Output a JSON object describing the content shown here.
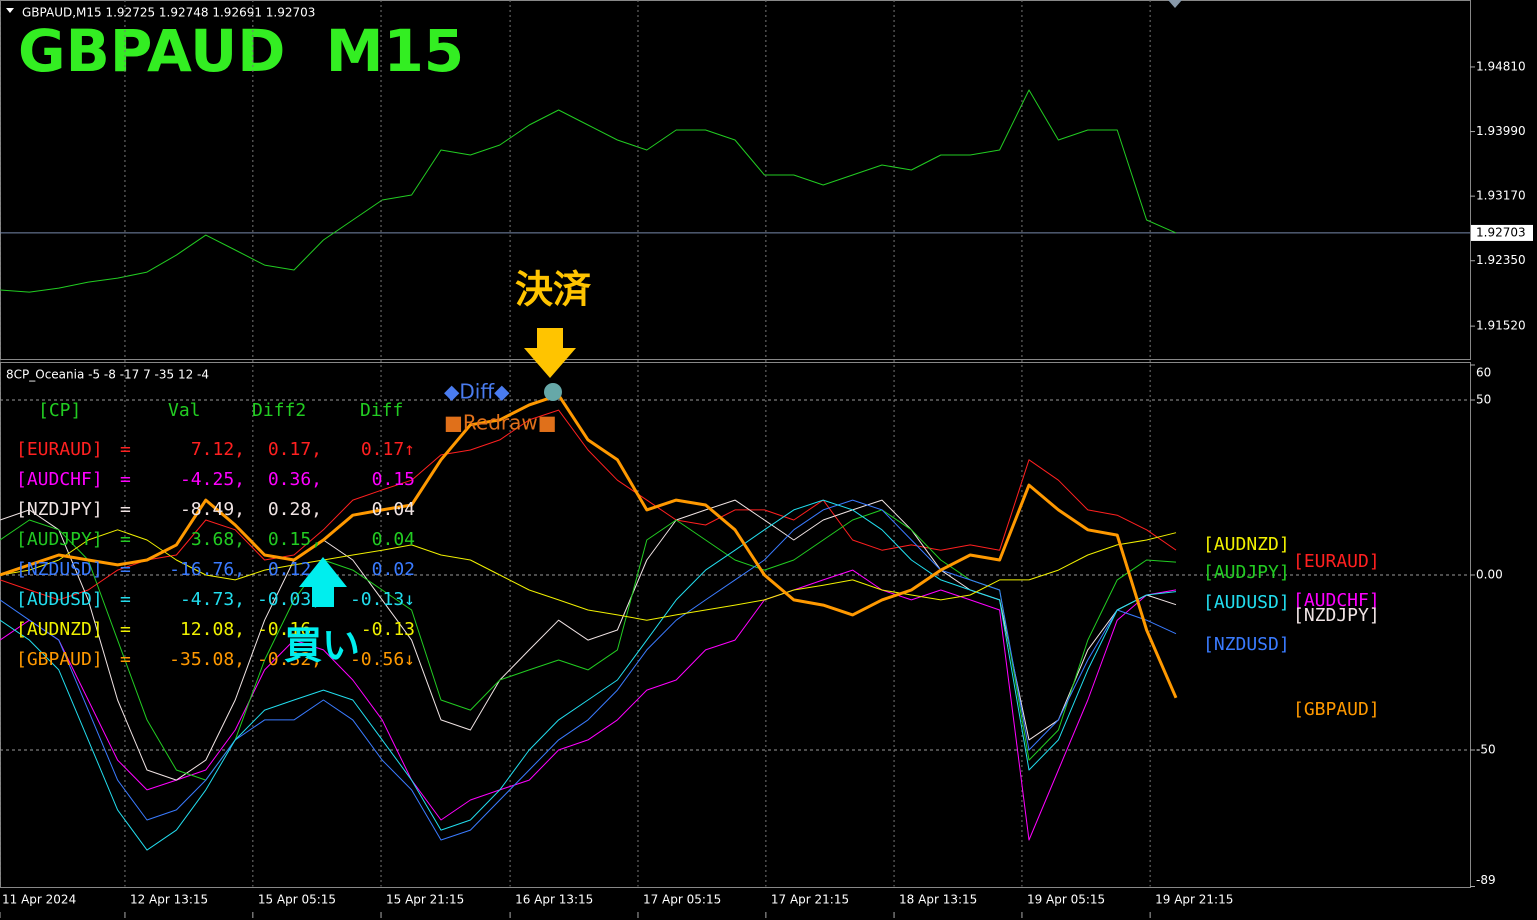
{
  "chart_data": [
    {
      "type": "line",
      "header": "GBPAUD,M15  1.92725 1.92748 1.92691 1.92703",
      "title": "GBPAUD  M15",
      "x": [
        0,
        1,
        2,
        3,
        4,
        5,
        6,
        7,
        8,
        9,
        10,
        11,
        12,
        13,
        14,
        15,
        16,
        17,
        18,
        19,
        20,
        21,
        22,
        23,
        24,
        25,
        26,
        27,
        28,
        29,
        30,
        31,
        32,
        33,
        34,
        35,
        36,
        37,
        38,
        39,
        40
      ],
      "xlim": [
        0,
        50
      ],
      "ylim": [
        1.9109,
        1.9566
      ],
      "yticks": [
        {
          "value": 1.9481,
          "label": "1.94810"
        },
        {
          "value": 1.9399,
          "label": "1.93990"
        },
        {
          "value": 1.9317,
          "label": "1.93170"
        },
        {
          "value": 1.9235,
          "label": "1.92350"
        },
        {
          "value": 1.9152,
          "label": "1.91520"
        }
      ],
      "current_price": {
        "value": 1.92703,
        "label": "1.92703"
      },
      "color": "#22cc22",
      "values": [
        1.91978,
        1.91952,
        1.92003,
        1.92079,
        1.9213,
        1.92206,
        1.92422,
        1.92676,
        1.92486,
        1.92295,
        1.92232,
        1.92613,
        1.92867,
        1.93121,
        1.93184,
        1.93756,
        1.93692,
        1.93819,
        1.94073,
        1.94264,
        1.94073,
        1.93883,
        1.93756,
        1.9401,
        1.9401,
        1.93883,
        1.93438,
        1.93438,
        1.93311,
        1.93438,
        1.93565,
        1.93502,
        1.93692,
        1.93692,
        1.93756,
        1.94518,
        1.93883,
        1.9401,
        1.9401,
        1.92867,
        1.92703
      ]
    },
    {
      "type": "line",
      "header": "8CP_Oceania -5 -8 -17 7 -35 12 -4",
      "x": [
        0,
        1,
        2,
        3,
        4,
        5,
        6,
        7,
        8,
        9,
        10,
        11,
        12,
        13,
        14,
        15,
        16,
        17,
        18,
        19,
        20,
        21,
        22,
        23,
        24,
        25,
        26,
        27,
        28,
        29,
        30,
        31,
        32,
        33,
        34,
        35,
        36,
        37,
        38,
        39,
        40
      ],
      "xlim": [
        0,
        50
      ],
      "ylim": [
        -89,
        60
      ],
      "yticks": [
        60,
        50,
        {
          "value": 0,
          "label": "0.00"
        },
        -50,
        -89
      ],
      "grid": true,
      "xticks": [
        {
          "value": 0,
          "label": "11 Apr 2024"
        },
        {
          "value": 4.25,
          "label": "12 Apr 13:15"
        },
        {
          "value": 8.6,
          "label": "15 Apr 05:15"
        },
        {
          "value": 12.96,
          "label": "15 Apr 21:15"
        },
        {
          "value": 17.35,
          "label": "16 Apr 13:15"
        },
        {
          "value": 21.7,
          "label": "17 Apr 05:15"
        },
        {
          "value": 26.05,
          "label": "17 Apr 21:15"
        },
        {
          "value": 30.41,
          "label": "18 Apr 13:15"
        },
        {
          "value": 34.76,
          "label": "19 Apr 05:15"
        },
        {
          "value": 39.12,
          "label": "19 Apr 21:15"
        }
      ],
      "series": [
        {
          "name": "[EURAUD]",
          "color": "#ff2020",
          "width": 1,
          "values": [
            -1.4,
            -4.3,
            -7.1,
            -4.3,
            1.4,
            4.3,
            5.7,
            15.7,
            12.9,
            4.3,
            5.7,
            12.9,
            21.4,
            24.3,
            27.1,
            34.3,
            35.7,
            38.6,
            44.3,
            47.1,
            35.7,
            27.1,
            21.4,
            15.7,
            14.3,
            18.6,
            18.6,
            15.7,
            21.4,
            10,
            7.1,
            8.6,
            7.1,
            8.6,
            7.1,
            32.9,
            27.1,
            18.6,
            17.1,
            12.9,
            7.12
          ]
        },
        {
          "name": "[AUDCHF]",
          "color": "#ff00ff",
          "width": 1,
          "values": [
            -18.6,
            -12.9,
            -18.6,
            -35.7,
            -52.9,
            -61.4,
            -58.6,
            -55.7,
            -44.3,
            -27.1,
            -18.6,
            -21.4,
            -30,
            -41.4,
            -58.6,
            -70,
            -64.3,
            -61.4,
            -58.6,
            -50,
            -47.1,
            -41.4,
            -32.9,
            -30,
            -21.4,
            -18.6,
            -7.1,
            -4.3,
            -1.4,
            1.4,
            -4.3,
            -7.1,
            -4.3,
            -7.1,
            -10,
            -75.7,
            -55.7,
            -35.7,
            -12.9,
            -5.7,
            -4.25
          ]
        },
        {
          "name": "[NZDJPY]",
          "color": "#f0e4e4",
          "width": 1,
          "values": [
            15.7,
            18.6,
            12.9,
            -7.1,
            -35.7,
            -55.7,
            -58.6,
            -52.9,
            -35.7,
            -12.9,
            4.3,
            10,
            4.3,
            -7.1,
            -18.6,
            -41.4,
            -44.3,
            -30,
            -21.4,
            -12.9,
            -18.6,
            -15.7,
            4.3,
            15.7,
            18.6,
            21.4,
            15.7,
            10,
            15.7,
            18.6,
            21.4,
            12.9,
            1.4,
            -4.3,
            -7.1,
            -47.1,
            -41.4,
            -21.4,
            -10,
            -5.7,
            -8.49
          ]
        },
        {
          "name": "[AUDJPY]",
          "color": "#22cc22",
          "width": 1,
          "values": [
            10,
            15.7,
            12.9,
            4.3,
            -18.6,
            -41.4,
            -55.7,
            -58.6,
            -47.1,
            -24.3,
            -7.1,
            4.3,
            1.4,
            -4.3,
            -10,
            -35.7,
            -38.6,
            -30,
            -27.1,
            -24.3,
            -27.1,
            -21.4,
            10,
            15.7,
            10,
            4.3,
            1.4,
            4.3,
            10,
            15.7,
            18.6,
            12.9,
            4.3,
            -1.4,
            -4.3,
            -52.9,
            -44.3,
            -18.6,
            -1.4,
            4.3,
            3.68
          ]
        },
        {
          "name": "[NZDUSD]",
          "color": "#3a7bff",
          "width": 1,
          "values": [
            -7.1,
            -12.9,
            -18.6,
            -38.6,
            -58.6,
            -70,
            -67.1,
            -58.6,
            -47.1,
            -41.4,
            -41.4,
            -35.7,
            -41.4,
            -52.9,
            -61.4,
            -75.7,
            -72.9,
            -64.3,
            -55.7,
            -47.1,
            -41.4,
            -32.9,
            -21.4,
            -12.9,
            -7.1,
            -1.4,
            4.3,
            12.9,
            18.6,
            21.4,
            18.6,
            10,
            1.4,
            -1.4,
            -4.3,
            -50,
            -41.4,
            -24.3,
            -10,
            -12.9,
            -16.76
          ]
        },
        {
          "name": "[AUDUSD]",
          "color": "#22ddee",
          "width": 1,
          "values": [
            -12.9,
            -18.6,
            -27.1,
            -47.1,
            -67.1,
            -78.6,
            -72.9,
            -61.4,
            -47.1,
            -38.6,
            -35.7,
            -32.9,
            -35.7,
            -47.1,
            -58.6,
            -72.9,
            -70,
            -61.4,
            -50,
            -41.4,
            -35.7,
            -30,
            -18.6,
            -7.1,
            1.4,
            7.1,
            12.9,
            18.6,
            21.4,
            18.6,
            12.9,
            4.3,
            -1.4,
            -4.3,
            -7.1,
            -55.7,
            -47.1,
            -27.1,
            -10,
            -5.7,
            -4.73
          ]
        },
        {
          "name": "[AUDNZD]",
          "color": "#f0f000",
          "width": 1,
          "values": [
            0,
            1.4,
            4.3,
            10,
            12.9,
            10,
            4.3,
            0,
            -1.4,
            1.4,
            2.9,
            4.3,
            5.7,
            7.1,
            8.6,
            5.7,
            4.3,
            0,
            -4.3,
            -7.1,
            -10,
            -11.4,
            -12.9,
            -11.4,
            -10,
            -8.6,
            -7.1,
            -4.3,
            -2.9,
            -1.4,
            -4.3,
            -5.7,
            -7.1,
            -5.7,
            -1.4,
            -1.4,
            1.4,
            5.7,
            8.6,
            10,
            12.08
          ]
        },
        {
          "name": "[GBPAUD]",
          "color": "#ff9900",
          "width": 3,
          "values": [
            0,
            2.9,
            5.7,
            4.3,
            2.9,
            4.3,
            8.6,
            21.4,
            14.3,
            5.7,
            4.3,
            10,
            17.1,
            18.6,
            20,
            32.9,
            42.9,
            44.3,
            48.6,
            51.4,
            38.6,
            32.9,
            18.6,
            21.4,
            20,
            12.9,
            0,
            -7.1,
            -8.6,
            -11.4,
            -7.1,
            -4.3,
            1.4,
            5.7,
            4.3,
            25.7,
            18.6,
            12.9,
            11.4,
            -15.7,
            -35.08
          ]
        }
      ],
      "table": {
        "header": [
          "[CP]",
          "Val",
          "Diff2",
          "Diff"
        ],
        "rows": [
          [
            "[EURAUD]",
            "=",
            "7.12,",
            "0.17,",
            "0.17↑"
          ],
          [
            "[AUDCHF]",
            "=",
            "-4.25,",
            "0.36,",
            "0.15"
          ],
          [
            "[NZDJPY]",
            "=",
            "-8.49,",
            "0.28,",
            "0.04"
          ],
          [
            "[AUDJPY]",
            "=",
            "3.68,",
            "0.15,",
            "0.04"
          ],
          [
            "[NZDUSD]",
            "=",
            "-16.76,",
            "0.12,",
            "0.02"
          ],
          [
            "[AUDUSD]",
            "=",
            "-4.73,",
            "-0.03,",
            "-0.13↓"
          ],
          [
            "[AUDNZD]",
            "=",
            "12.08,",
            "-0.16,",
            "-0.13"
          ],
          [
            "[GBPAUD]",
            "=",
            "-35.08,",
            "-0.32,",
            "-0.56↓"
          ]
        ]
      },
      "annotations": {
        "close": "決済",
        "buy": "買い",
        "diff": "◆Diff◆",
        "redraw": "■Redraw■"
      }
    }
  ]
}
